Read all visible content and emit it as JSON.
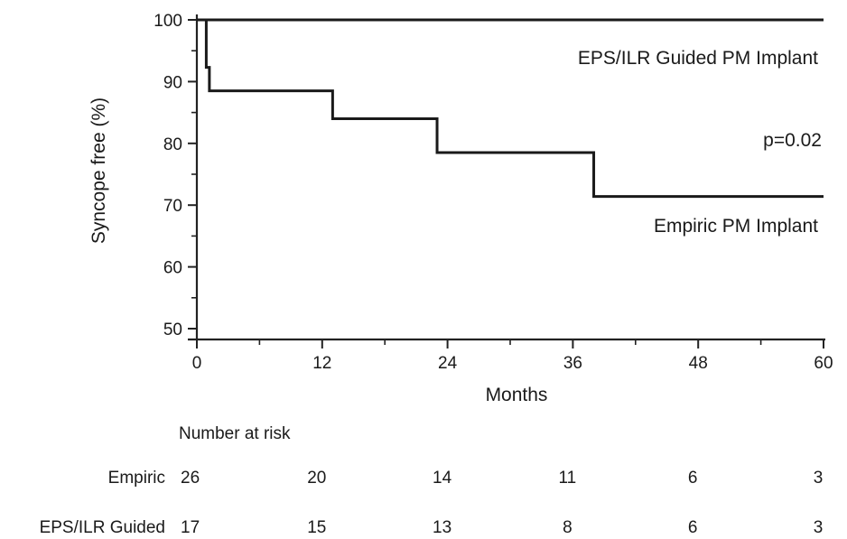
{
  "chart_data": {
    "type": "line",
    "title": "",
    "xlabel": "Months",
    "ylabel": "Syncope free (%)",
    "xlim": [
      0,
      60
    ],
    "ylim": [
      50,
      100
    ],
    "xticks": [
      0,
      12,
      24,
      36,
      48,
      60
    ],
    "yticks": [
      50,
      60,
      70,
      80,
      90,
      100
    ],
    "line_style": "step",
    "series": [
      {
        "name": "EPS/ILR Guided PM Implant",
        "x": [
          0,
          60
        ],
        "y": [
          100,
          100
        ]
      },
      {
        "name": "Empiric PM Implant",
        "x": [
          0,
          0.9,
          1.2,
          13,
          23,
          38,
          60
        ],
        "y": [
          100,
          92.3,
          88.5,
          84,
          78.5,
          71.4,
          71.4
        ]
      }
    ],
    "annotations": [
      "p=0.02"
    ],
    "risk_table": {
      "title": "Number at risk",
      "rows": [
        {
          "name": "Empiric",
          "values": [
            "26",
            "20",
            "14",
            "11",
            "6",
            "3"
          ]
        },
        {
          "name": "EPS/ILR Guided",
          "values": [
            "17",
            "15",
            "13",
            "8",
            "6",
            "3"
          ]
        }
      ]
    }
  }
}
